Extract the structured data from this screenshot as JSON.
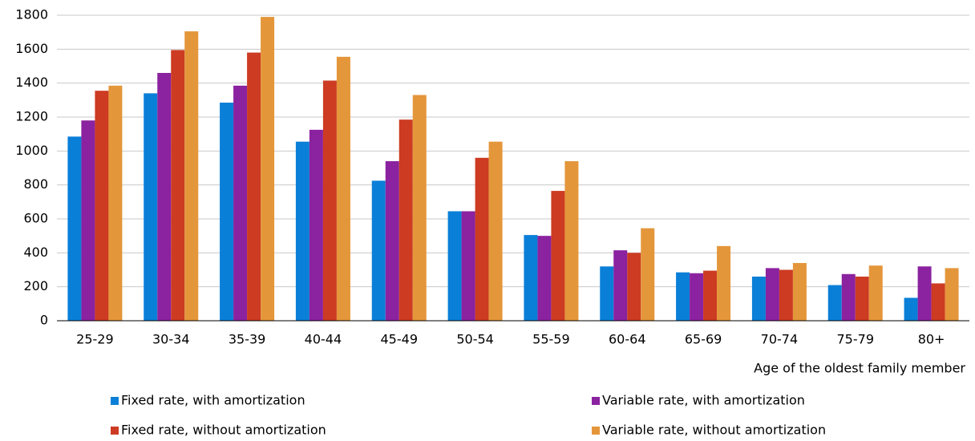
{
  "chart_data": {
    "type": "bar",
    "x_label": "Age of the oldest family member",
    "categories": [
      "25-29",
      "30-34",
      "35-39",
      "40-44",
      "45-49",
      "50-54",
      "55-59",
      "60-64",
      "65-69",
      "70-74",
      "75-79",
      "80+"
    ],
    "series": [
      {
        "name": "Fixed rate, with amortization",
        "color": "#0a7fd8",
        "values": [
          1085,
          1340,
          1285,
          1055,
          825,
          645,
          505,
          320,
          285,
          260,
          210,
          135
        ]
      },
      {
        "name": "Variable rate, with amortization",
        "color": "#8b229f",
        "values": [
          1180,
          1460,
          1385,
          1125,
          940,
          645,
          500,
          415,
          280,
          310,
          275,
          320
        ]
      },
      {
        "name": "Fixed rate, without amortization",
        "color": "#cc3b22",
        "values": [
          1355,
          1595,
          1580,
          1415,
          1185,
          960,
          765,
          400,
          295,
          300,
          260,
          220
        ]
      },
      {
        "name": "Variable rate, without amortization",
        "color": "#e4963a",
        "values": [
          1385,
          1705,
          1790,
          1555,
          1330,
          1055,
          940,
          545,
          440,
          340,
          325,
          310
        ]
      }
    ],
    "ylim": [
      0,
      1800
    ],
    "yticks": [
      0,
      200,
      400,
      600,
      800,
      1000,
      1200,
      1400,
      1600,
      1800
    ],
    "grid": true
  }
}
